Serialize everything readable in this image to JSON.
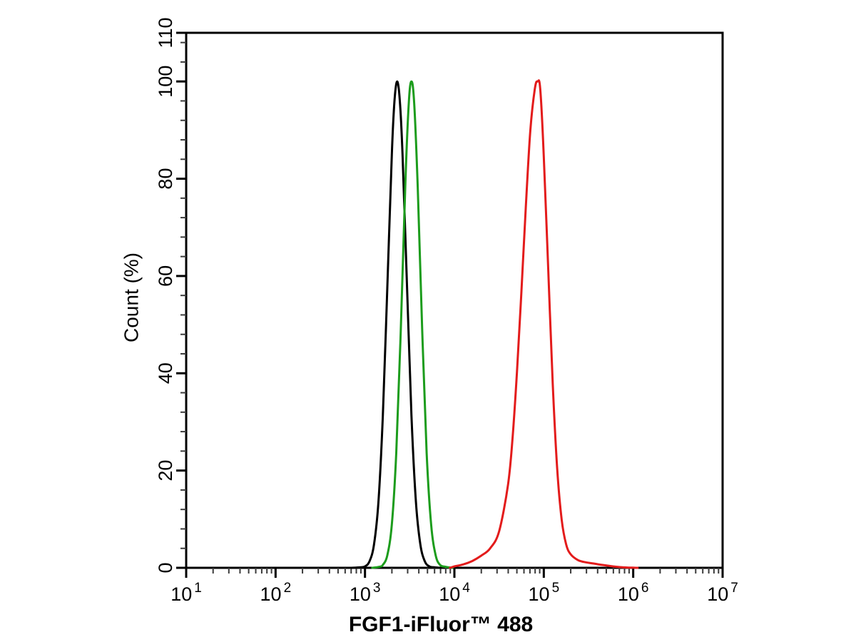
{
  "figure": {
    "background_color": "#ffffff",
    "axis_color": "#000000",
    "minor_tick_color": "#3c3c3c"
  },
  "chart_data": {
    "type": "line",
    "subtype": "flow-cytometry-histogram-overlay",
    "title": "",
    "xlabel": "FGF1-iFluor™ 488",
    "ylabel": "Count (%)",
    "grid": false,
    "legend": "none",
    "x_axis": {
      "scale": "log10",
      "min_exponent": 1,
      "max_exponent": 7,
      "tick_base": "10",
      "major_tick_exponents": [
        1,
        2,
        3,
        4,
        5,
        6,
        7
      ],
      "minor_ticks_per_decade": "2-9"
    },
    "y_axis": {
      "min": 0,
      "max": 110,
      "major_ticks": [
        0,
        20,
        40,
        60,
        80,
        100,
        110
      ],
      "minor_tick_step": 4,
      "tick_labels": [
        "0",
        "20",
        "40",
        "60",
        "80",
        "100",
        "110"
      ]
    },
    "series": [
      {
        "name": "black-peak",
        "color": "#000000",
        "peak_log10": 3.36,
        "peak_x": 2290,
        "peak_percent": 100,
        "points_log10_pct": [
          [
            2.85,
            0
          ],
          [
            2.95,
            0.1
          ],
          [
            3.0,
            0.3
          ],
          [
            3.05,
            1.3
          ],
          [
            3.1,
            4.7
          ],
          [
            3.15,
            13.5
          ],
          [
            3.2,
            31.3
          ],
          [
            3.25,
            57.8
          ],
          [
            3.3,
            85
          ],
          [
            3.33,
            96
          ],
          [
            3.36,
            100
          ],
          [
            3.39,
            96
          ],
          [
            3.42,
            85
          ],
          [
            3.47,
            57.8
          ],
          [
            3.52,
            31.3
          ],
          [
            3.57,
            13.5
          ],
          [
            3.62,
            4.7
          ],
          [
            3.67,
            1.3
          ],
          [
            3.72,
            0.3
          ],
          [
            3.78,
            0.1
          ],
          [
            3.86,
            0
          ]
        ]
      },
      {
        "name": "green-peak",
        "color": "#1c9c1c",
        "peak_log10": 3.52,
        "peak_x": 3310,
        "peak_percent": 100,
        "points_log10_pct": [
          [
            3.08,
            0
          ],
          [
            3.16,
            0.2
          ],
          [
            3.2,
            0.6
          ],
          [
            3.25,
            2.6
          ],
          [
            3.3,
            8.9
          ],
          [
            3.35,
            23.6
          ],
          [
            3.4,
            48.7
          ],
          [
            3.45,
            78.3
          ],
          [
            3.49,
            95.6
          ],
          [
            3.52,
            100
          ],
          [
            3.55,
            95.6
          ],
          [
            3.59,
            78.3
          ],
          [
            3.64,
            48.7
          ],
          [
            3.69,
            23.6
          ],
          [
            3.74,
            8.9
          ],
          [
            3.79,
            2.6
          ],
          [
            3.84,
            0.6
          ],
          [
            3.9,
            0.2
          ],
          [
            3.98,
            0
          ]
        ]
      },
      {
        "name": "red-peak",
        "color": "#e31b1b",
        "peak_log10": 4.93,
        "peak_x": 85100,
        "peak_percent": 100,
        "points_log10_pct": [
          [
            3.95,
            0
          ],
          [
            4.0,
            0.3
          ],
          [
            4.1,
            0.7
          ],
          [
            4.2,
            1.4
          ],
          [
            4.3,
            2.5
          ],
          [
            4.4,
            4.0
          ],
          [
            4.5,
            7.5
          ],
          [
            4.6,
            17.1
          ],
          [
            4.65,
            26.6
          ],
          [
            4.7,
            40.2
          ],
          [
            4.75,
            56.9
          ],
          [
            4.8,
            74.7
          ],
          [
            4.85,
            90
          ],
          [
            4.9,
            98.5
          ],
          [
            4.93,
            100
          ],
          [
            4.96,
            98.5
          ],
          [
            5.0,
            84.6
          ],
          [
            5.05,
            61.2
          ],
          [
            5.1,
            37.7
          ],
          [
            5.15,
            20.4
          ],
          [
            5.2,
            9.9
          ],
          [
            5.25,
            4.8
          ],
          [
            5.3,
            2.8
          ],
          [
            5.38,
            1.6
          ],
          [
            5.45,
            1.2
          ],
          [
            5.55,
            0.9
          ],
          [
            5.65,
            0.6
          ],
          [
            5.75,
            0.35
          ],
          [
            5.85,
            0.15
          ],
          [
            5.95,
            0.05
          ],
          [
            6.05,
            0
          ]
        ]
      }
    ]
  }
}
